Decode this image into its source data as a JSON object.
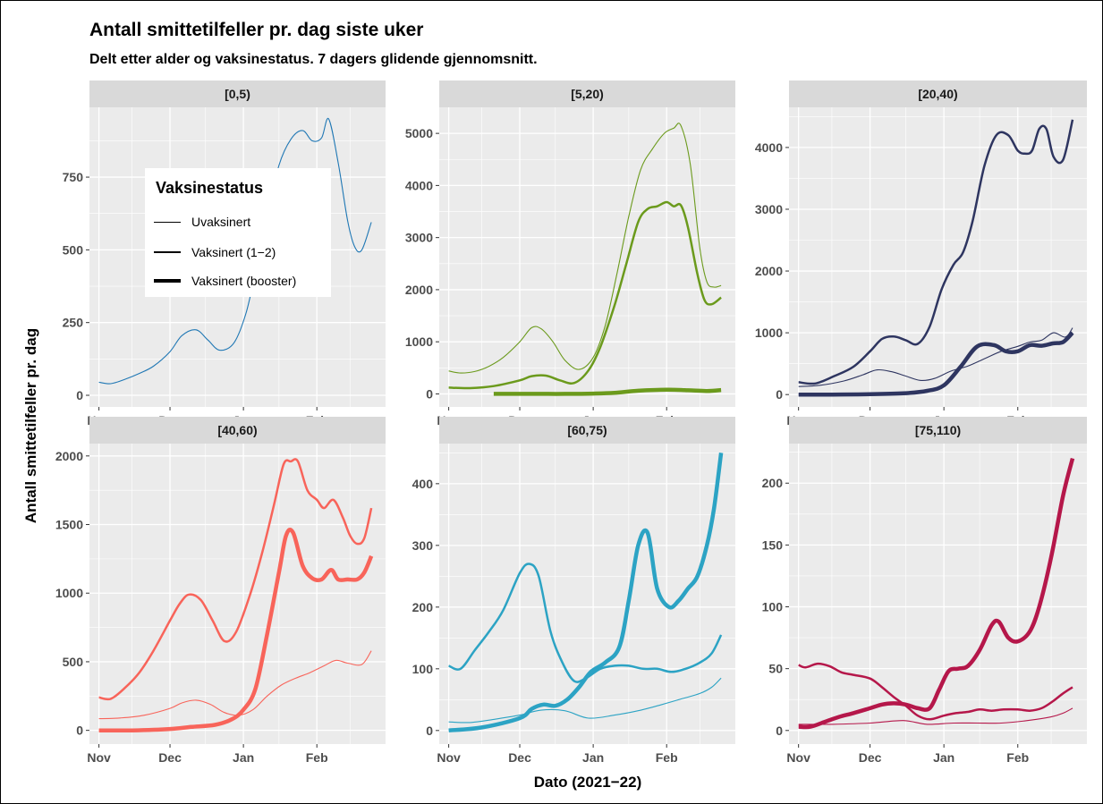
{
  "chart_data": {
    "type": "line",
    "title": "Antall smittetilfeller pr. dag siste uker",
    "subtitle": "Delt etter alder og vaksinestatus. 7 dagers glidende gjennomsnitt.",
    "xlabel": "Dato (2021−22)",
    "ylabel": "Antall smittetilfeller pr. dag",
    "x_ticks": [
      "Nov",
      "Dec",
      "Jan",
      "Feb"
    ],
    "x_tick_dates": [
      "2021-11-01",
      "2021-12-01",
      "2022-01-01",
      "2022-02-01"
    ],
    "xlim": [
      "2021-10-28",
      "2022-03-02"
    ],
    "grid": true,
    "legend": {
      "title": "Vaksinestatus",
      "placement": "inside-top-left",
      "entries": [
        "Uvaksinert",
        "Vaksinert (1−2)",
        "Vaksinert (booster)"
      ]
    },
    "panels": [
      {
        "facet": "[0,5)",
        "color": "#1f77b4",
        "ylim": [
          -40,
          990
        ],
        "y_ticks": [
          0,
          250,
          500,
          750
        ],
        "series": [
          {
            "name": "Uvaksinert",
            "x": [
              "2021-11-01",
              "2021-11-06",
              "2021-11-12",
              "2021-11-18",
              "2021-11-24",
              "2021-12-01",
              "2021-12-06",
              "2021-12-12",
              "2021-12-17",
              "2021-12-22",
              "2021-12-28",
              "2022-01-02",
              "2022-01-06",
              "2022-01-11",
              "2022-01-16",
              "2022-01-21",
              "2022-01-26",
              "2022-01-30",
              "2022-02-03",
              "2022-02-06",
              "2022-02-10",
              "2022-02-14",
              "2022-02-17",
              "2022-02-20",
              "2022-02-24"
            ],
            "y": [
              45,
              40,
              55,
              75,
              100,
              150,
              205,
              225,
              190,
              155,
              180,
              280,
              420,
              610,
              790,
              880,
              910,
              875,
              885,
              950,
              800,
              600,
              510,
              500,
              595
            ]
          }
        ]
      },
      {
        "facet": "[5,20)",
        "color": "#6b9a1c",
        "ylim": [
          -250,
          5500
        ],
        "y_ticks": [
          0,
          1000,
          2000,
          3000,
          4000,
          5000
        ],
        "series": [
          {
            "name": "Uvaksinert",
            "x": [
              "2021-11-01",
              "2021-11-06",
              "2021-11-12",
              "2021-11-18",
              "2021-11-24",
              "2021-12-01",
              "2021-12-06",
              "2021-12-10",
              "2021-12-15",
              "2021-12-20",
              "2021-12-26",
              "2022-01-01",
              "2022-01-06",
              "2022-01-11",
              "2022-01-16",
              "2022-01-21",
              "2022-01-26",
              "2022-01-31",
              "2022-02-04",
              "2022-02-07",
              "2022-02-11",
              "2022-02-15",
              "2022-02-18",
              "2022-02-21",
              "2022-02-24"
            ],
            "y": [
              440,
              400,
              430,
              530,
              700,
              1000,
              1270,
              1250,
              1000,
              650,
              470,
              700,
              1300,
              2300,
              3400,
              4300,
              4700,
              5000,
              5100,
              5150,
              4400,
              2800,
              2150,
              2050,
              2080
            ]
          },
          {
            "name": "Vaksinert (1−2)",
            "x": [
              "2021-11-01",
              "2021-11-10",
              "2021-11-20",
              "2021-12-01",
              "2021-12-06",
              "2021-12-12",
              "2021-12-18",
              "2021-12-24",
              "2021-12-30",
              "2022-01-04",
              "2022-01-10",
              "2022-01-15",
              "2022-01-20",
              "2022-01-24",
              "2022-01-28",
              "2022-02-01",
              "2022-02-04",
              "2022-02-07",
              "2022-02-10",
              "2022-02-14",
              "2022-02-17",
              "2022-02-20",
              "2022-02-24"
            ],
            "y": [
              120,
              110,
              150,
              260,
              340,
              350,
              260,
              210,
              450,
              900,
              1700,
              2500,
              3300,
              3550,
              3600,
              3680,
              3600,
              3620,
              3200,
              2300,
              1800,
              1720,
              1850
            ]
          },
          {
            "name": "Vaksinert (booster)",
            "x": [
              "2021-11-20",
              "2021-12-01",
              "2021-12-10",
              "2021-12-20",
              "2022-01-01",
              "2022-01-10",
              "2022-01-20",
              "2022-02-01",
              "2022-02-10",
              "2022-02-18",
              "2022-02-24"
            ],
            "y": [
              0,
              0,
              0,
              0,
              5,
              20,
              60,
              80,
              70,
              55,
              75
            ]
          }
        ]
      },
      {
        "facet": "[20,40)",
        "color": "#2e3560",
        "ylim": [
          -200,
          4650
        ],
        "y_ticks": [
          0,
          1000,
          2000,
          3000,
          4000
        ],
        "series": [
          {
            "name": "Uvaksinert",
            "x": [
              "2021-11-01",
              "2021-11-10",
              "2021-11-20",
              "2021-11-28",
              "2021-12-04",
              "2021-12-10",
              "2021-12-16",
              "2021-12-22",
              "2021-12-28",
              "2022-01-04",
              "2022-01-11",
              "2022-01-18",
              "2022-01-25",
              "2022-02-01",
              "2022-02-06",
              "2022-02-11",
              "2022-02-16",
              "2022-02-21",
              "2022-02-24"
            ],
            "y": [
              130,
              150,
              220,
              320,
              400,
              370,
              300,
              230,
              260,
              380,
              460,
              580,
              700,
              780,
              850,
              880,
              1000,
              930,
              1080
            ]
          },
          {
            "name": "Vaksinert (1−2)",
            "x": [
              "2021-11-01",
              "2021-11-08",
              "2021-11-16",
              "2021-11-24",
              "2021-12-01",
              "2021-12-06",
              "2021-12-11",
              "2021-12-16",
              "2021-12-21",
              "2021-12-26",
              "2021-12-31",
              "2022-01-05",
              "2022-01-09",
              "2022-01-13",
              "2022-01-18",
              "2022-01-23",
              "2022-01-28",
              "2022-02-01",
              "2022-02-04",
              "2022-02-07",
              "2022-02-10",
              "2022-02-13",
              "2022-02-16",
              "2022-02-20",
              "2022-02-24"
            ],
            "y": [
              200,
              180,
              300,
              450,
              700,
              900,
              940,
              880,
              820,
              1100,
              1700,
              2100,
              2300,
              2800,
              3700,
              4200,
              4200,
              3950,
              3900,
              3950,
              4300,
              4300,
              3850,
              3800,
              4450
            ]
          },
          {
            "name": "Vaksinert (booster)",
            "x": [
              "2021-11-01",
              "2021-11-15",
              "2021-12-01",
              "2021-12-15",
              "2021-12-25",
              "2022-01-01",
              "2022-01-08",
              "2022-01-15",
              "2022-01-22",
              "2022-01-27",
              "2022-02-01",
              "2022-02-06",
              "2022-02-11",
              "2022-02-16",
              "2022-02-20",
              "2022-02-24"
            ],
            "y": [
              0,
              0,
              5,
              20,
              60,
              150,
              450,
              780,
              800,
              700,
              700,
              800,
              790,
              830,
              850,
              1000
            ]
          }
        ]
      },
      {
        "facet": "[40,60)",
        "color": "#f8645a",
        "ylim": [
          -100,
          2090
        ],
        "y_ticks": [
          0,
          500,
          1000,
          1500,
          2000
        ],
        "series": [
          {
            "name": "Uvaksinert",
            "x": [
              "2021-11-01",
              "2021-11-10",
              "2021-11-20",
              "2021-12-01",
              "2021-12-06",
              "2021-12-12",
              "2021-12-18",
              "2021-12-24",
              "2021-12-30",
              "2022-01-05",
              "2022-01-11",
              "2022-01-17",
              "2022-01-23",
              "2022-01-29",
              "2022-02-04",
              "2022-02-09",
              "2022-02-14",
              "2022-02-20",
              "2022-02-24"
            ],
            "y": [
              85,
              90,
              110,
              160,
              200,
              220,
              190,
              130,
              110,
              150,
              250,
              330,
              380,
              420,
              470,
              510,
              490,
              480,
              580
            ]
          },
          {
            "name": "Vaksinert (1−2)",
            "x": [
              "2021-11-01",
              "2021-11-06",
              "2021-11-12",
              "2021-11-18",
              "2021-11-24",
              "2021-12-01",
              "2021-12-05",
              "2021-12-09",
              "2021-12-14",
              "2021-12-19",
              "2021-12-24",
              "2021-12-29",
              "2022-01-04",
              "2022-01-09",
              "2022-01-14",
              "2022-01-18",
              "2022-01-21",
              "2022-01-24",
              "2022-01-28",
              "2022-02-01",
              "2022-02-04",
              "2022-02-08",
              "2022-02-12",
              "2022-02-15",
              "2022-02-18",
              "2022-02-21",
              "2022-02-24"
            ],
            "y": [
              240,
              230,
              310,
              420,
              580,
              800,
              920,
              990,
              950,
              800,
              650,
              720,
              1000,
              1300,
              1650,
              1940,
              1960,
              1960,
              1750,
              1680,
              1620,
              1680,
              1550,
              1420,
              1360,
              1400,
              1620
            ]
          },
          {
            "name": "Vaksinert (booster)",
            "x": [
              "2021-11-01",
              "2021-11-15",
              "2021-12-01",
              "2021-12-10",
              "2021-12-20",
              "2021-12-27",
              "2022-01-01",
              "2022-01-06",
              "2022-01-11",
              "2022-01-16",
              "2022-01-19",
              "2022-01-22",
              "2022-01-26",
              "2022-01-30",
              "2022-02-03",
              "2022-02-07",
              "2022-02-10",
              "2022-02-14",
              "2022-02-18",
              "2022-02-21",
              "2022-02-24"
            ],
            "y": [
              0,
              0,
              10,
              25,
              40,
              80,
              150,
              300,
              700,
              1150,
              1420,
              1440,
              1200,
              1110,
              1100,
              1170,
              1100,
              1100,
              1100,
              1150,
              1270
            ]
          }
        ]
      },
      {
        "facet": "[60,75)",
        "color": "#2ca3c4",
        "ylim": [
          -22,
          465
        ],
        "y_ticks": [
          0,
          100,
          200,
          300,
          400
        ],
        "series": [
          {
            "name": "Uvaksinert",
            "x": [
              "2021-11-01",
              "2021-11-10",
              "2021-11-20",
              "2021-12-01",
              "2021-12-10",
              "2021-12-20",
              "2021-12-30",
              "2022-01-10",
              "2022-01-20",
              "2022-01-30",
              "2022-02-08",
              "2022-02-15",
              "2022-02-20",
              "2022-02-24"
            ],
            "y": [
              14,
              13,
              18,
              25,
              33,
              32,
              20,
              25,
              32,
              42,
              52,
              60,
              70,
              85
            ]
          },
          {
            "name": "Vaksinert (1−2)",
            "x": [
              "2021-11-01",
              "2021-11-06",
              "2021-11-12",
              "2021-11-18",
              "2021-11-24",
              "2021-12-01",
              "2021-12-05",
              "2021-12-09",
              "2021-12-14",
              "2021-12-19",
              "2021-12-24",
              "2021-12-29",
              "2022-01-04",
              "2022-01-10",
              "2022-01-16",
              "2022-01-22",
              "2022-01-28",
              "2022-02-03",
              "2022-02-09",
              "2022-02-15",
              "2022-02-20",
              "2022-02-24"
            ],
            "y": [
              105,
              100,
              130,
              160,
              195,
              255,
              270,
              250,
              160,
              110,
              80,
              85,
              100,
              105,
              105,
              100,
              100,
              95,
              100,
              110,
              125,
              155
            ]
          },
          {
            "name": "Vaksinert (booster)",
            "x": [
              "2021-11-01",
              "2021-11-15",
              "2021-12-01",
              "2021-12-06",
              "2021-12-11",
              "2021-12-16",
              "2021-12-21",
              "2021-12-26",
              "2021-12-31",
              "2022-01-06",
              "2022-01-12",
              "2022-01-16",
              "2022-01-20",
              "2022-01-24",
              "2022-01-28",
              "2022-02-02",
              "2022-02-06",
              "2022-02-10",
              "2022-02-14",
              "2022-02-18",
              "2022-02-21",
              "2022-02-24"
            ],
            "y": [
              0,
              5,
              20,
              35,
              42,
              40,
              50,
              70,
              95,
              110,
              135,
              210,
              300,
              320,
              230,
              200,
              210,
              230,
              250,
              300,
              360,
              450
            ]
          }
        ]
      },
      {
        "facet": "[75,110)",
        "color": "#b5174a",
        "ylim": [
          -11,
          232
        ],
        "y_ticks": [
          0,
          50,
          100,
          150,
          200
        ],
        "series": [
          {
            "name": "Uvaksinert",
            "x": [
              "2021-11-01",
              "2021-11-15",
              "2021-12-01",
              "2021-12-15",
              "2021-12-25",
              "2022-01-05",
              "2022-01-15",
              "2022-01-25",
              "2022-02-05",
              "2022-02-15",
              "2022-02-20",
              "2022-02-24"
            ],
            "y": [
              5,
              5,
              6,
              8,
              5,
              6,
              6,
              6,
              8,
              11,
              14,
              18
            ]
          },
          {
            "name": "Vaksinert (1−2)",
            "x": [
              "2021-11-01",
              "2021-11-04",
              "2021-11-09",
              "2021-11-14",
              "2021-11-19",
              "2021-11-24",
              "2021-12-01",
              "2021-12-06",
              "2021-12-11",
              "2021-12-16",
              "2021-12-21",
              "2021-12-26",
              "2022-01-01",
              "2022-01-06",
              "2022-01-11",
              "2022-01-16",
              "2022-01-21",
              "2022-01-26",
              "2022-02-01",
              "2022-02-06",
              "2022-02-11",
              "2022-02-16",
              "2022-02-20",
              "2022-02-24"
            ],
            "y": [
              53,
              51,
              54,
              52,
              47,
              45,
              42,
              35,
              27,
              20,
              12,
              9,
              12,
              14,
              15,
              17,
              16,
              17,
              17,
              16,
              18,
              24,
              30,
              35
            ]
          },
          {
            "name": "Vaksinert (booster)",
            "x": [
              "2021-11-01",
              "2021-11-06",
              "2021-11-12",
              "2021-11-18",
              "2021-11-24",
              "2021-12-01",
              "2021-12-06",
              "2021-12-11",
              "2021-12-16",
              "2021-12-21",
              "2021-12-26",
              "2021-12-30",
              "2022-01-03",
              "2022-01-07",
              "2022-01-11",
              "2022-01-16",
              "2022-01-21",
              "2022-01-24",
              "2022-01-28",
              "2022-02-01",
              "2022-02-06",
              "2022-02-10",
              "2022-02-15",
              "2022-02-20",
              "2022-02-24"
            ],
            "y": [
              3,
              3,
              7,
              11,
              14,
              18,
              21,
              22,
              21,
              18,
              18,
              33,
              48,
              50,
              52,
              65,
              85,
              88,
              75,
              72,
              80,
              100,
              140,
              190,
              220
            ]
          }
        ]
      }
    ]
  }
}
